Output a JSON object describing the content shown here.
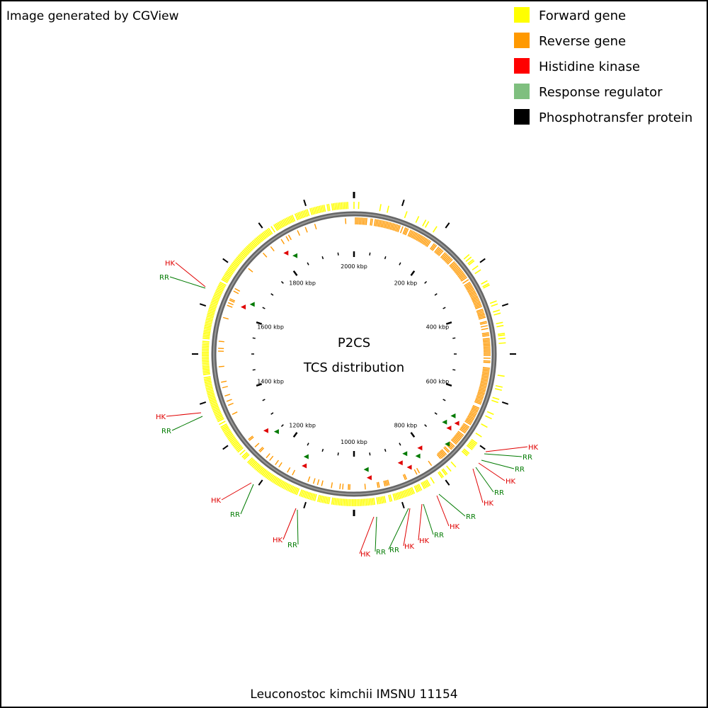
{
  "header": {
    "caption": "Image generated by CGView"
  },
  "legend": {
    "items": [
      {
        "label": "Forward gene",
        "color": "#ffff00"
      },
      {
        "label": "Reverse gene",
        "color": "#ff9900"
      },
      {
        "label": "Histidine kinase",
        "color": "#ff0000"
      },
      {
        "label": "Response regulator",
        "color": "#7fbf7f"
      },
      {
        "label": "Phosphotransfer protein",
        "color": "#000000"
      }
    ]
  },
  "center": {
    "title": "P2CS",
    "subtitle": "TCS distribution"
  },
  "ruler": {
    "labels": [
      "200 kbp",
      "400 kbp",
      "600 kbp",
      "800 kbp",
      "1000 kbp",
      "1200 kbp",
      "1400 kbp",
      "1600 kbp",
      "1800 kbp",
      "2000 kbp"
    ]
  },
  "callouts": [
    {
      "label": "HK",
      "color": "#e00000"
    },
    {
      "label": "RR",
      "color": "#007a00"
    },
    {
      "label": "HK",
      "color": "#e00000"
    },
    {
      "label": "RR",
      "color": "#007a00"
    },
    {
      "label": "HK",
      "color": "#e00000"
    },
    {
      "label": "RR",
      "color": "#007a00"
    },
    {
      "label": "HK",
      "color": "#e00000"
    },
    {
      "label": "RR",
      "color": "#007a00"
    },
    {
      "label": "HK",
      "color": "#e00000"
    },
    {
      "label": "RR",
      "color": "#007a00"
    },
    {
      "label": "RR",
      "color": "#007a00"
    },
    {
      "label": "HK",
      "color": "#e00000"
    },
    {
      "label": "HK",
      "color": "#e00000"
    },
    {
      "label": "RR",
      "color": "#007a00"
    },
    {
      "label": "RR",
      "color": "#007a00"
    },
    {
      "label": "HK",
      "color": "#e00000"
    },
    {
      "label": "HK",
      "color": "#e00000"
    },
    {
      "label": "RR",
      "color": "#007a00"
    },
    {
      "label": "HK",
      "color": "#e00000"
    },
    {
      "label": "RR",
      "color": "#007a00"
    },
    {
      "label": "RR",
      "color": "#007a00"
    },
    {
      "label": "HK",
      "color": "#e00000"
    }
  ],
  "footer": {
    "caption": "Leuconostoc kimchii IMSNU 11154"
  }
}
